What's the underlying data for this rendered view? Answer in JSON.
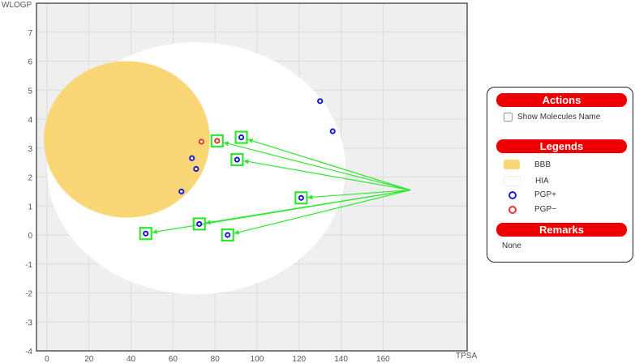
{
  "chart_data": {
    "type": "scatter",
    "xlabel": "TPSA",
    "ylabel": "WLOGP",
    "xlim": [
      -5,
      200
    ],
    "ylim": [
      -4,
      8
    ],
    "xticks": [
      0,
      20,
      40,
      60,
      80,
      100,
      120,
      140,
      160
    ],
    "yticks": [
      -4,
      -3,
      -2,
      -1,
      0,
      1,
      2,
      3,
      4,
      5,
      6,
      7
    ],
    "grid": true,
    "regions": {
      "HIA": {
        "color": "#ffffff",
        "cx": 71.0,
        "cy": 2.3,
        "rx": 142.1,
        "ry": 8.7
      },
      "BBB": {
        "color": "#f9d777",
        "cx": 38.0,
        "cy": 3.3,
        "rx": 79.0,
        "ry": 5.4
      }
    },
    "series": [
      {
        "name": "PGP+",
        "color": "#1a1ad6",
        "points": [
          [
            64,
            1.5
          ],
          [
            69,
            2.65
          ],
          [
            71,
            2.28
          ],
          [
            72.5,
            0.38
          ],
          [
            47,
            0.05
          ],
          [
            86,
            0.0
          ],
          [
            90.5,
            2.6
          ],
          [
            92.5,
            3.37
          ],
          [
            121,
            1.28
          ],
          [
            130,
            4.62
          ],
          [
            136,
            3.58
          ]
        ]
      },
      {
        "name": "PGP−",
        "color": "#e8332a",
        "points": [
          [
            73.5,
            3.22
          ],
          [
            81,
            3.25
          ]
        ]
      }
    ],
    "highlighted_points": [
      [
        81,
        3.25
      ],
      [
        92.5,
        3.37
      ],
      [
        90.5,
        2.6
      ],
      [
        121,
        1.28
      ],
      [
        72.5,
        0.38
      ],
      [
        47,
        0.05
      ],
      [
        86,
        0.0
      ]
    ],
    "arrow_origin": [
      173,
      1.55
    ],
    "highlight_color": "#2ee82e"
  },
  "panel": {
    "actions_title": "Actions",
    "show_names_label": "Show Molecules Name",
    "legends_title": "Legends",
    "legend_items": [
      {
        "label": "BBB"
      },
      {
        "label": "HIA"
      },
      {
        "label": "PGP+"
      },
      {
        "label": "PGP−"
      }
    ],
    "remarks_title": "Remarks",
    "remarks_text": "None"
  }
}
